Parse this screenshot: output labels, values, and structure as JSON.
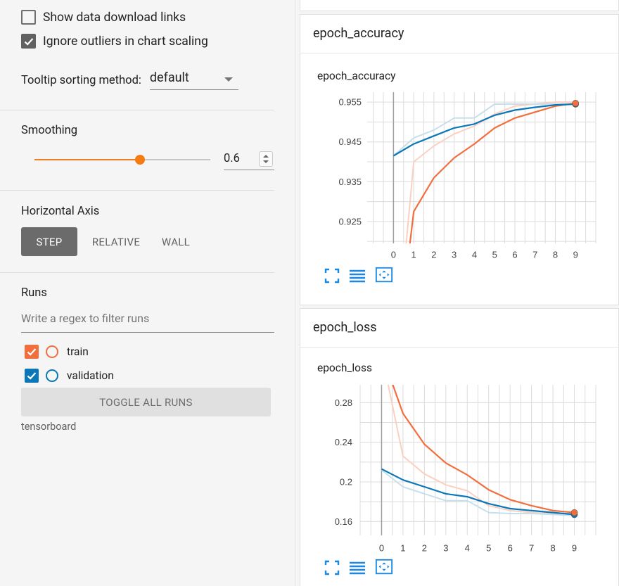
{
  "sidebar": {
    "show_download_links": {
      "label": "Show data download links",
      "checked": false
    },
    "ignore_outliers": {
      "label": "Ignore outliers in chart scaling",
      "checked": true
    },
    "tooltip": {
      "label": "Tooltip sorting method:",
      "value": "default"
    },
    "smoothing": {
      "title": "Smoothing",
      "value": "0.6",
      "fraction": 0.6
    },
    "horizontal_axis": {
      "title": "Horizontal Axis",
      "options": [
        "STEP",
        "RELATIVE",
        "WALL"
      ],
      "selected": "STEP"
    },
    "runs": {
      "title": "Runs",
      "filter_placeholder": "Write a regex to filter runs",
      "items": [
        {
          "name": "train",
          "checked": true,
          "color": "#f26f3d"
        },
        {
          "name": "validation",
          "checked": true,
          "color": "#0a77b8"
        }
      ],
      "toggle_all_label": "TOGGLE ALL RUNS",
      "logdir": "tensorboard"
    }
  },
  "cards": [
    {
      "title": "epoch_accuracy"
    },
    {
      "title": "epoch_loss"
    }
  ],
  "colors": {
    "train": "#f26f3d",
    "validation": "#0a77b8",
    "train_raw": "#fbd0c0",
    "validation_raw": "#c6dfed",
    "accent": "#f47c12"
  },
  "chart_data": [
    {
      "type": "line",
      "title": "epoch_accuracy",
      "x": [
        0,
        1,
        2,
        3,
        4,
        5,
        6,
        7,
        8,
        9
      ],
      "xlim": [
        -1.3,
        10
      ],
      "ylim": [
        0.9195,
        0.9575
      ],
      "yticks": [
        "0.925",
        "0.935",
        "0.945",
        "0.955"
      ],
      "ytick_values": [
        0.925,
        0.935,
        0.945,
        0.955
      ],
      "grid": true,
      "series": [
        {
          "name": "train (raw)",
          "run": "train",
          "smoothed": false,
          "values": [
            0.885,
            0.94,
            0.944,
            0.947,
            0.949,
            0.952,
            0.954,
            0.9545,
            0.955,
            0.955
          ]
        },
        {
          "name": "validation (raw)",
          "run": "validation",
          "smoothed": false,
          "values": [
            0.9415,
            0.946,
            0.948,
            0.951,
            0.951,
            0.9545,
            0.9545,
            0.9545,
            0.9545,
            0.9545
          ]
        },
        {
          "name": "train",
          "run": "train",
          "smoothed": true,
          "values": [
            0.885,
            0.9275,
            0.936,
            0.941,
            0.9445,
            0.9485,
            0.951,
            0.9525,
            0.954,
            0.9547
          ]
        },
        {
          "name": "validation",
          "run": "validation",
          "smoothed": true,
          "values": [
            0.9415,
            0.9445,
            0.9465,
            0.9485,
            0.9495,
            0.9517,
            0.953,
            0.9537,
            0.9543,
            0.9545
          ]
        }
      ]
    },
    {
      "type": "line",
      "title": "epoch_loss",
      "x": [
        0,
        1,
        2,
        3,
        4,
        5,
        6,
        7,
        8,
        9
      ],
      "xlim": [
        -1.0,
        10
      ],
      "ylim": [
        0.146,
        0.298
      ],
      "yticks": [
        "0.16",
        "0.2",
        "0.24",
        "0.28"
      ],
      "ytick_values": [
        0.16,
        0.2,
        0.24,
        0.28
      ],
      "grid": true,
      "series": [
        {
          "name": "train (raw)",
          "run": "train",
          "smoothed": false,
          "values": [
            0.33,
            0.226,
            0.208,
            0.197,
            0.191,
            0.176,
            0.171,
            0.169,
            0.168,
            0.168
          ]
        },
        {
          "name": "validation (raw)",
          "run": "validation",
          "smoothed": false,
          "values": [
            0.212,
            0.195,
            0.188,
            0.181,
            0.181,
            0.169,
            0.168,
            0.168,
            0.167,
            0.166
          ]
        },
        {
          "name": "train",
          "run": "train",
          "smoothed": true,
          "values": [
            0.33,
            0.269,
            0.238,
            0.219,
            0.207,
            0.192,
            0.182,
            0.176,
            0.171,
            0.169
          ]
        },
        {
          "name": "validation",
          "run": "validation",
          "smoothed": true,
          "values": [
            0.213,
            0.202,
            0.195,
            0.188,
            0.185,
            0.178,
            0.173,
            0.171,
            0.169,
            0.167
          ]
        }
      ]
    }
  ]
}
